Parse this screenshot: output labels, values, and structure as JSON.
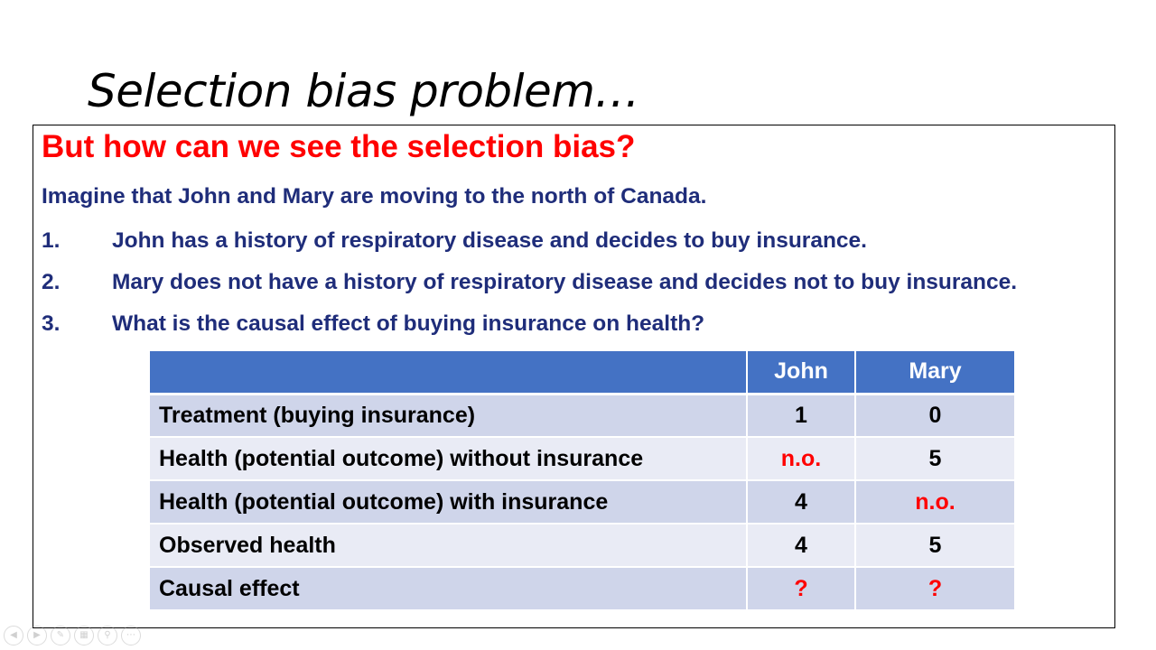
{
  "slide": {
    "title": "Selection bias problem…",
    "headline": "But how can we see the selection bias?",
    "intro": "Imagine that John and Mary are moving to the north of Canada.",
    "points": [
      {
        "num": "1.",
        "text": "John has a history of respiratory disease and decides to buy insurance."
      },
      {
        "num": "2.",
        "text": "Mary does not have a history of respiratory disease and decides not to buy insurance."
      },
      {
        "num": "3.",
        "text": "What is the causal effect of buying insurance on health?"
      }
    ]
  },
  "table": {
    "headers": [
      "",
      "John",
      "Mary"
    ],
    "rows": [
      {
        "label": "Treatment (buying insurance)",
        "john": "1",
        "mary": "0"
      },
      {
        "label": "Health (potential outcome) without insurance",
        "john": "n.o.",
        "mary": "5"
      },
      {
        "label": "Health (potential outcome) with insurance",
        "john": "4",
        "mary": "n.o."
      },
      {
        "label": "Observed health",
        "john": "4",
        "mary": "5"
      },
      {
        "label": "Causal effect",
        "john": "?",
        "mary": "?"
      }
    ]
  },
  "colors": {
    "headline": "#ff0000",
    "body_text": "#1f2d7a",
    "table_header": "#4472c4",
    "row_dark": "#cfd5ea",
    "row_light": "#e9ebf5",
    "highlight": "#ff0000"
  },
  "nav_icons": [
    "previous-icon",
    "next-icon",
    "pen-icon",
    "slides-icon",
    "zoom-icon",
    "more-icon"
  ]
}
